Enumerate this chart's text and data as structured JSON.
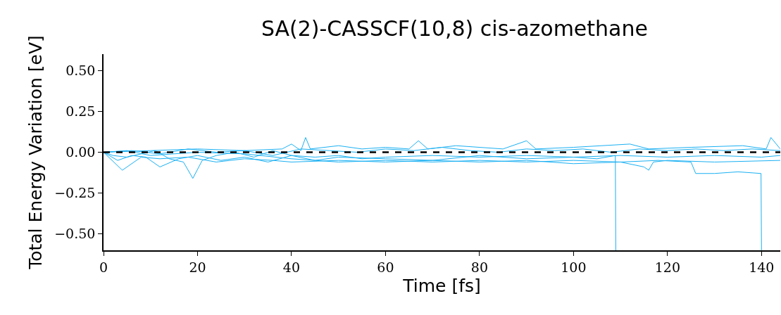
{
  "chart_data": {
    "type": "line",
    "title": "SA(2)-CASSCF(10,8) cis-azomethane",
    "xlabel": "Time [fs]",
    "ylabel": "Total Energy Variation [eV]",
    "xlim": [
      0,
      144
    ],
    "xticks": [
      0,
      20,
      40,
      60,
      80,
      100,
      120,
      140
    ],
    "ylim": [
      -0.6,
      0.6
    ],
    "yticks": [
      {
        "value": -0.5,
        "label": "−0.50"
      },
      {
        "value": -0.25,
        "label": "−0.25"
      },
      {
        "value": 0,
        "label": "0.00"
      },
      {
        "value": 0.25,
        "label": "0.25"
      },
      {
        "value": 0.5,
        "label": "0.50"
      }
    ],
    "grid": false,
    "line_style": "solid",
    "marker": "none",
    "ref_lines": [
      {
        "axis": "y",
        "value": 0,
        "color": "#000000",
        "line_style": "dashed"
      }
    ],
    "series": [
      {
        "color": "#1ab0f2",
        "x": [
          0,
          2,
          5,
          8,
          11,
          14,
          17,
          19,
          21,
          24,
          28,
          32,
          36,
          40,
          45,
          50,
          55,
          60,
          70,
          80,
          90,
          100,
          110,
          120,
          130,
          140,
          144
        ],
        "values": [
          0,
          -0.02,
          -0.03,
          -0.01,
          0.01,
          -0.04,
          -0.06,
          -0.16,
          -0.05,
          -0.02,
          0,
          -0.03,
          0.01,
          -0.02,
          -0.03,
          -0.02,
          -0.04,
          -0.03,
          -0.02,
          -0.03,
          -0.02,
          -0.03,
          -0.02,
          -0.03,
          -0.02,
          -0.03,
          -0.02
        ]
      },
      {
        "color": "#1ab0f2",
        "x": [
          0,
          3,
          6,
          9,
          12,
          16,
          20,
          25,
          30,
          35,
          40,
          45,
          50,
          60,
          70,
          80,
          90,
          100,
          105,
          108.9,
          109
        ],
        "values": [
          0,
          -0.05,
          -0.02,
          -0.03,
          -0.09,
          -0.04,
          -0.02,
          -0.05,
          -0.03,
          -0.06,
          -0.02,
          -0.05,
          -0.03,
          -0.04,
          -0.05,
          -0.02,
          -0.04,
          -0.03,
          -0.04,
          -0.02,
          -0.6
        ]
      },
      {
        "color": "#1ab0f2",
        "x": [
          0,
          5,
          10,
          20,
          30,
          40,
          50,
          60,
          70,
          80,
          90,
          100,
          110,
          118,
          125,
          126,
          130,
          135,
          139.9,
          140
        ],
        "values": [
          0,
          0.01,
          -0.02,
          0,
          -0.01,
          -0.04,
          -0.06,
          -0.05,
          -0.06,
          -0.05,
          -0.06,
          -0.05,
          -0.06,
          -0.05,
          -0.06,
          -0.13,
          -0.13,
          -0.12,
          -0.13,
          -0.6
        ]
      },
      {
        "color": "#1ab0f2",
        "x": [
          0,
          10,
          20,
          30,
          38,
          40,
          42,
          43,
          44,
          50,
          55,
          60,
          65,
          67,
          69,
          75,
          85,
          90,
          92,
          100,
          112,
          116,
          125,
          136,
          141,
          142,
          144
        ],
        "values": [
          0,
          0.01,
          0.02,
          0.01,
          0.02,
          0.05,
          0.01,
          0.09,
          0.02,
          0.04,
          0.02,
          0.03,
          0.02,
          0.07,
          0.02,
          0.04,
          0.02,
          0.07,
          0.02,
          0.03,
          0.05,
          0.02,
          0.03,
          0.04,
          0.02,
          0.09,
          0.02
        ]
      },
      {
        "color": "#1ab0f2",
        "x": [
          0,
          4,
          8,
          12,
          18,
          24,
          30,
          36,
          40,
          50,
          60,
          70,
          80,
          90,
          100,
          110,
          115,
          116,
          117,
          120,
          130,
          144
        ],
        "values": [
          0,
          -0.11,
          -0.03,
          -0.04,
          -0.03,
          -0.06,
          -0.04,
          -0.05,
          -0.06,
          -0.05,
          -0.06,
          -0.05,
          -0.06,
          -0.05,
          -0.07,
          -0.06,
          -0.09,
          -0.11,
          -0.06,
          -0.05,
          -0.06,
          -0.05
        ]
      },
      {
        "color": "#1ab0f2",
        "x": [
          0,
          6,
          12,
          18,
          24,
          30,
          36,
          42,
          48,
          54,
          60,
          66,
          72,
          78,
          84,
          90,
          96,
          102,
          108,
          114,
          120,
          126,
          132,
          138,
          144
        ],
        "values": [
          0,
          0.01,
          -0.01,
          0.02,
          0,
          0.01,
          -0.02,
          0.02,
          0.01,
          0,
          0.02,
          0.01,
          0.03,
          0.01,
          0,
          0.02,
          0.01,
          0.02,
          0,
          0.02,
          0.01,
          0.02,
          0.01,
          0.02,
          0.01
        ]
      }
    ]
  }
}
